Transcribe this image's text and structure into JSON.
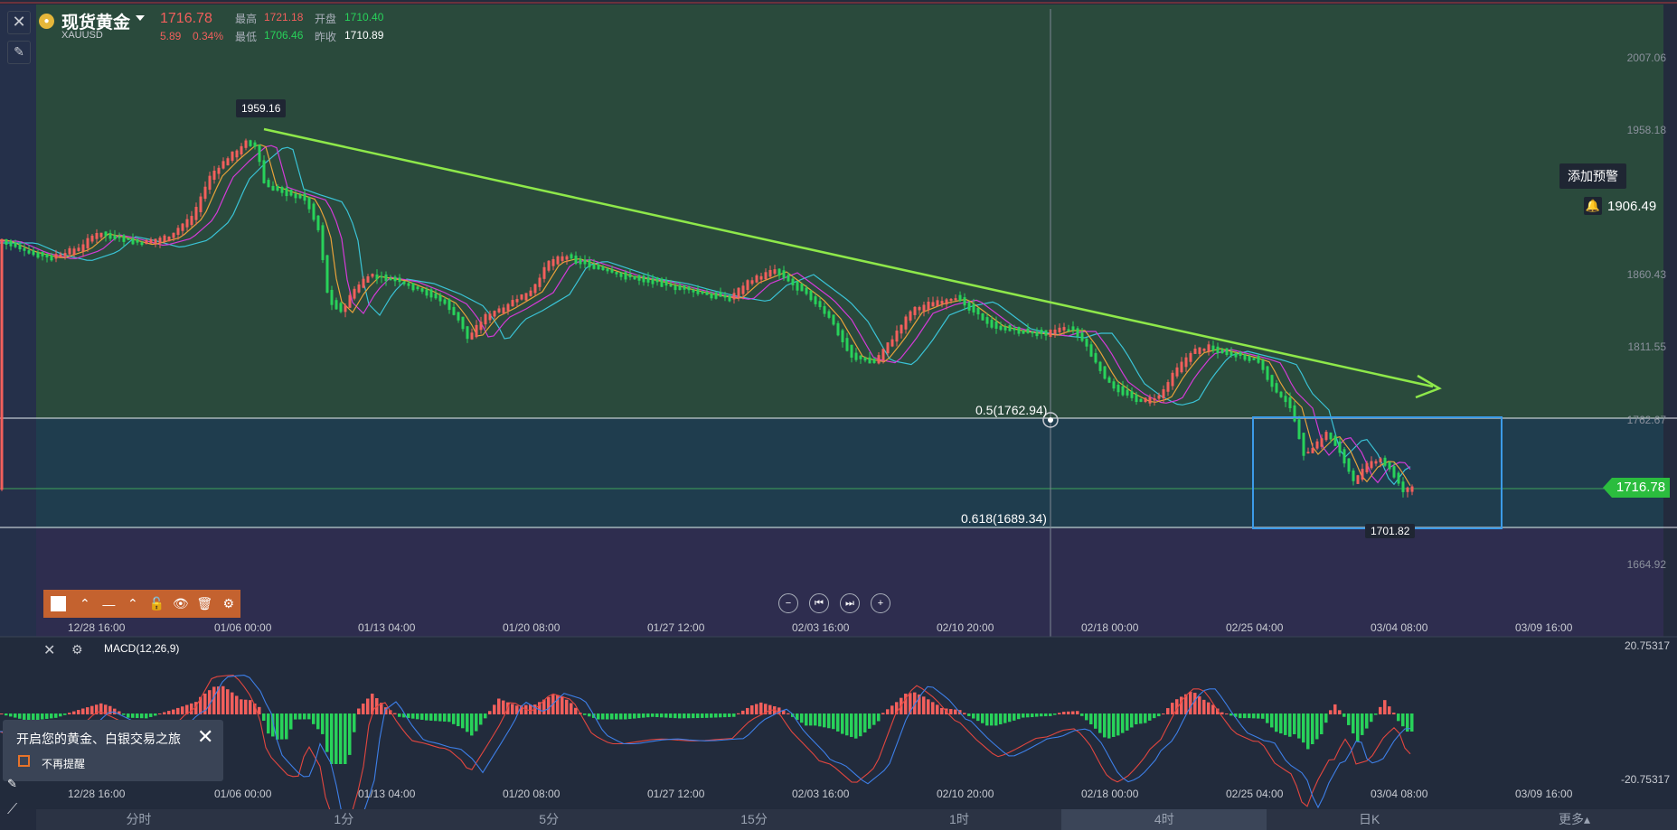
{
  "header": {
    "title": "现货黄金",
    "symbol": "XAUUSD",
    "price": "1716.78",
    "change": "5.89",
    "change_pct": "0.34%",
    "high_label": "最高",
    "high": "1721.18",
    "open_label": "开盘",
    "open": "1710.40",
    "low_label": "最低",
    "low": "1706.46",
    "prev_close_label": "昨收",
    "prev_close": "1710.89"
  },
  "y_axis": [
    "2007.06",
    "1958.18",
    "1860.43",
    "1811.55",
    "1762.67",
    "1664.92"
  ],
  "x_axis": [
    "12/28 16:00",
    "01/06 00:00",
    "01/13 04:00",
    "01/20 08:00",
    "01/27 12:00",
    "02/03 16:00",
    "02/10 20:00",
    "02/18 00:00",
    "02/25 04:00",
    "03/04 08:00",
    "03/09 16:00"
  ],
  "alert": {
    "label": "添加预警",
    "value": "1906.49"
  },
  "current_price": "1716.78",
  "fib": {
    "f05": "0.5(1762.94)",
    "f0618": "0.618(1689.34)"
  },
  "high_tag": "1959.16",
  "low_tag": "1701.82",
  "macd": {
    "title": "MACD(12,26,9)",
    "top": "20.75317",
    "bottom": "-20.75317"
  },
  "popup": {
    "text": "开启您的黄金、白银交易之旅",
    "checkbox_label": "不再提醒"
  },
  "tabs": [
    "分时",
    "1分",
    "5分",
    "15分",
    "1时",
    "4时",
    "日K",
    "更多▴"
  ],
  "active_tab": "4时",
  "colors": {
    "up": "#f25f5c",
    "down": "#28d25a",
    "trend": "#8ee84a",
    "box": "#3c9be8",
    "price_tag": "#2bbd3e"
  }
}
